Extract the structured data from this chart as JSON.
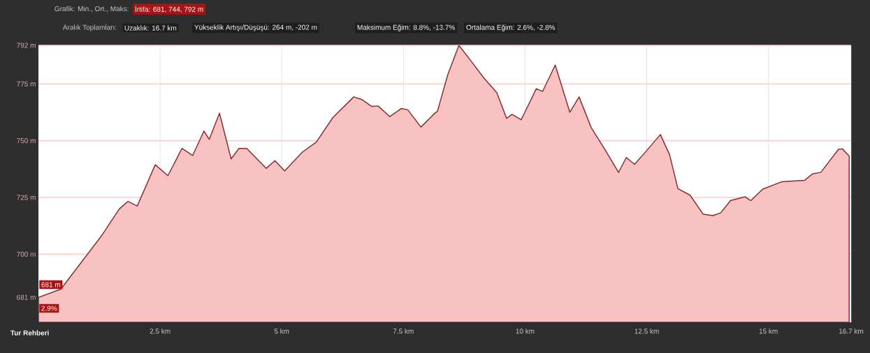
{
  "chart_data": {
    "type": "area",
    "title": "Grafik: Min., Ort., Maks:",
    "subtitle": "İrtifa: 681, 744, 792 m",
    "annotations": [
      "Aralık Toplamları:",
      "Uzaklık: 16.7 km",
      "Yükseklik Artışı/Düşüşü: 264 m, -202 m",
      "Maksimum Eğim: 8.8%, -13.7%",
      "Ortalama Eğim: 2.6%, -2.8%",
      "681 m",
      "2.9%",
      "Tur Rehberi"
    ],
    "x": [
      0,
      0.46,
      1.31,
      1.66,
      1.84,
      2.03,
      2.4,
      2.66,
      2.95,
      3.17,
      3.4,
      3.51,
      3.72,
      3.96,
      4.12,
      4.28,
      4.68,
      4.86,
      5.06,
      5.42,
      5.71,
      6.05,
      6.48,
      6.64,
      6.85,
      6.98,
      7.22,
      7.46,
      7.59,
      7.86,
      8.12,
      8.2,
      8.41,
      8.64,
      8.9,
      9.15,
      9.42,
      9.62,
      9.73,
      9.92,
      10.23,
      10.36,
      10.62,
      10.92,
      11.11,
      11.36,
      11.64,
      11.92,
      12.08,
      12.25,
      12.53,
      12.78,
      12.97,
      13.14,
      13.39,
      13.66,
      13.86,
      14.02,
      14.22,
      14.52,
      14.64,
      14.88,
      15.27,
      15.74,
      15.91,
      16.08,
      16.44,
      16.52,
      16.66
    ],
    "values": [
      681,
      684.6,
      708.5,
      719.9,
      723.3,
      721.2,
      739.4,
      734.6,
      746.6,
      743.5,
      754.2,
      750.6,
      762.1,
      742,
      746.6,
      746.6,
      737.8,
      741.2,
      736.7,
      744.9,
      749.4,
      760.2,
      769.3,
      768.2,
      765.1,
      765.3,
      760.6,
      764.2,
      763.6,
      756,
      761.6,
      763,
      779,
      792,
      784.8,
      777.7,
      771.1,
      759.8,
      761.6,
      759.2,
      772.9,
      771.7,
      783.3,
      762.5,
      769.3,
      755.7,
      746.2,
      736,
      742.6,
      739.6,
      746.4,
      752.7,
      743.8,
      728.9,
      726,
      717.6,
      717,
      718.2,
      723.6,
      725.3,
      723.6,
      728.6,
      731.9,
      732.5,
      735.4,
      736.1,
      746.2,
      746.4,
      743.2
    ],
    "color": "#8b2a2a",
    "xlim": [
      0,
      16.7
    ],
    "ylim": [
      670,
      792
    ],
    "xticks": [
      {
        "value": 2.5,
        "label": "2.5 km"
      },
      {
        "value": 5,
        "label": "5 km"
      },
      {
        "value": 7.5,
        "label": "7.5 km"
      },
      {
        "value": 10,
        "label": "10 km"
      },
      {
        "value": 12.5,
        "label": "12.5 km"
      },
      {
        "value": 15,
        "label": "15 km"
      },
      {
        "value": 16.7,
        "label": "16.7 km"
      }
    ],
    "yticks": [
      {
        "value": 681,
        "label": "681 m"
      },
      {
        "value": 700,
        "label": "700 m"
      },
      {
        "value": 725,
        "label": "725 m"
      },
      {
        "value": 750,
        "label": "750 m"
      },
      {
        "value": 775,
        "label": "775 m"
      },
      {
        "value": 792,
        "label": "792 m"
      }
    ],
    "grid": true,
    "line_style": "solid",
    "marker": "none"
  }
}
